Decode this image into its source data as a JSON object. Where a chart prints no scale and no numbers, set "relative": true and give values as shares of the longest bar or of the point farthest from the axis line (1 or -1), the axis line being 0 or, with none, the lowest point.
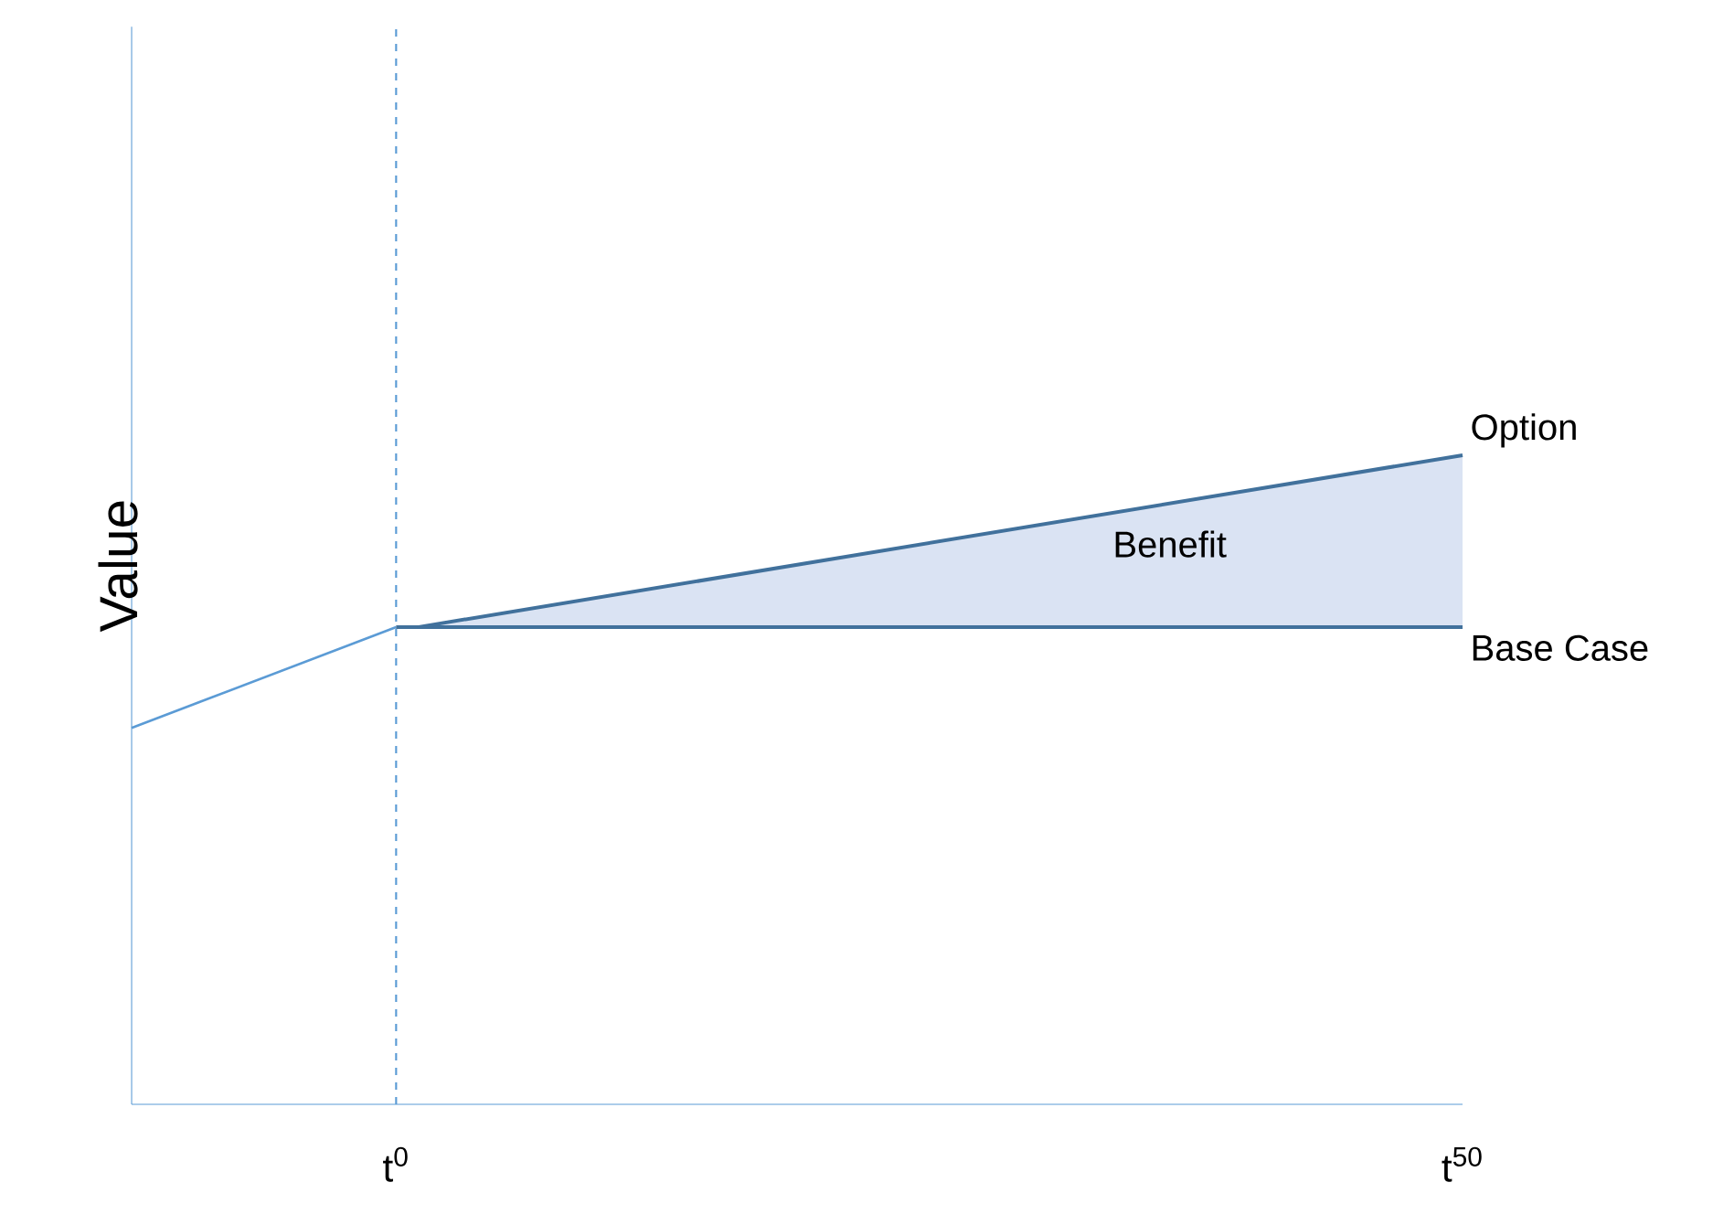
{
  "chart_data": {
    "type": "line",
    "relative": true,
    "ylabel": "Value",
    "xlim": [
      -12.4,
      50
    ],
    "xticks": [
      {
        "value": 0,
        "label": "t$^{0}$"
      },
      {
        "value": 50,
        "label": "t$^{50}$"
      }
    ],
    "series": [
      {
        "color": "#5b9bd5",
        "x": [
          -12.4,
          0
        ],
        "values": [
          0.58,
          0.735
        ]
      },
      {
        "name": "Base Case",
        "color": "#41719c",
        "x": [
          0,
          50
        ],
        "values": [
          0.735,
          0.735
        ]
      },
      {
        "name": "Option",
        "color": "#41719c",
        "x": [
          1,
          50
        ],
        "values": [
          0.735,
          1
        ],
        "lower": [
          0.735,
          0.735
        ],
        "upper": [
          0.735,
          1
        ]
      }
    ],
    "ref_lines": [
      {
        "axis": "x",
        "value": 0,
        "color": "#5b9bd5",
        "line_style": "dashed"
      }
    ],
    "annotations": [
      "Benefit"
    ]
  }
}
